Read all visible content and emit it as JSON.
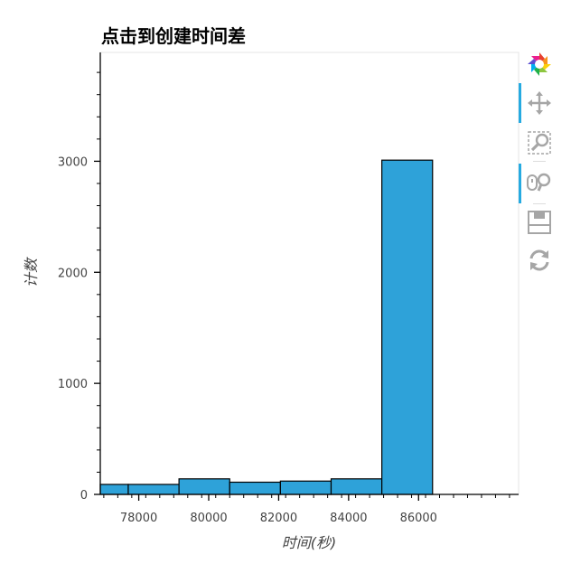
{
  "chart_data": {
    "type": "bar",
    "title": "点击到创建时间差",
    "xlabel": "时间(秒)",
    "ylabel": "计数",
    "xlim": [
      76900,
      88860
    ],
    "ylim": [
      0,
      3980
    ],
    "x_ticks": [
      78000,
      80000,
      82000,
      84000,
      86000
    ],
    "x_tick_labels": [
      "78000",
      "80000",
      "82000",
      "84000",
      "86000"
    ],
    "y_ticks": [
      0,
      1000,
      2000,
      3000
    ],
    "y_tick_labels": [
      "0",
      "1000",
      "2000",
      "3000"
    ],
    "bins": [
      {
        "left": 76900,
        "right": 77700,
        "value": 90
      },
      {
        "left": 77700,
        "right": 79150,
        "value": 90
      },
      {
        "left": 79150,
        "right": 80600,
        "value": 140
      },
      {
        "left": 80600,
        "right": 82050,
        "value": 110
      },
      {
        "left": 82050,
        "right": 83500,
        "value": 120
      },
      {
        "left": 83500,
        "right": 84950,
        "value": 140
      },
      {
        "left": 84950,
        "right": 86400,
        "value": 3010
      }
    ],
    "bar_color": "#2ea2d9",
    "bar_edge_color": "#000000",
    "grid": false,
    "legend": "none"
  },
  "toolbar": {
    "tools": [
      {
        "name": "bokeh-logo-icon",
        "active": false
      },
      {
        "name": "pan-icon",
        "active": true
      },
      {
        "name": "box-zoom-icon",
        "active": false
      },
      {
        "name": "wheel-zoom-icon",
        "active": true
      },
      {
        "name": "save-icon",
        "active": false
      },
      {
        "name": "reset-icon",
        "active": false
      }
    ]
  }
}
